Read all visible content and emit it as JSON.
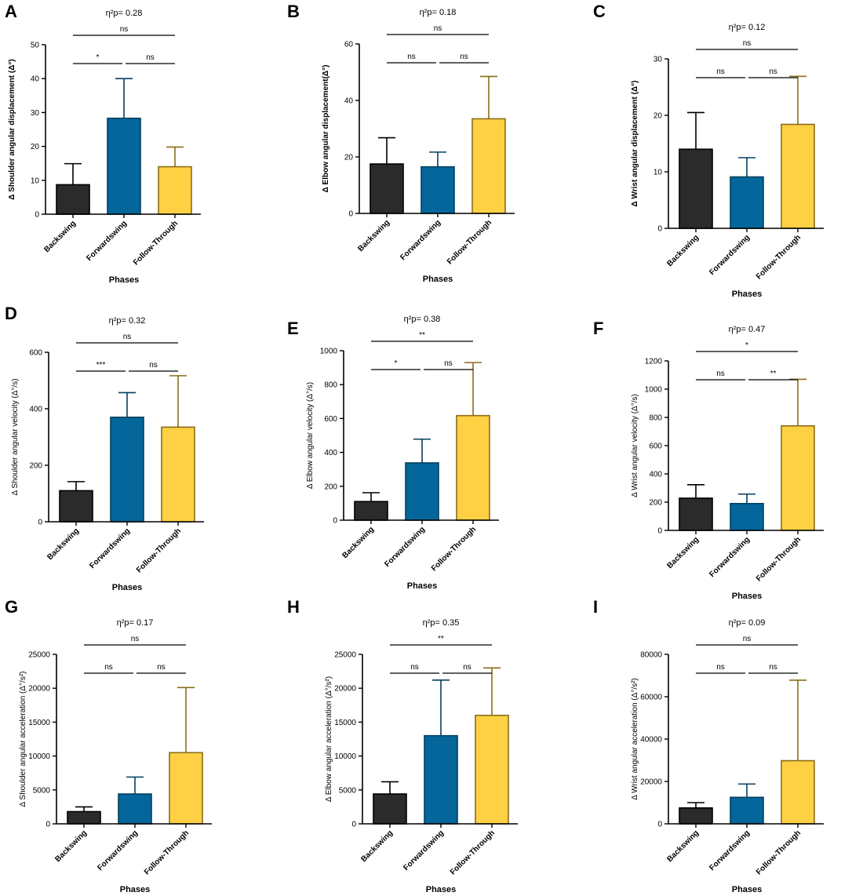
{
  "figure": {
    "categories": [
      "Backswing",
      "Forwardswing",
      "Follow-Through"
    ],
    "xlabel": "Phases",
    "colors": {
      "bars": [
        "#2b2b2b",
        "#04669a",
        "#fdd143"
      ],
      "edges": [
        "#000000",
        "#03405f",
        "#8a6d1a"
      ]
    }
  },
  "chart_data": [
    {
      "panel": "A",
      "type": "bar",
      "ylabel": "Δ Shoulder angular displacement (Δ°)",
      "ylabel_bold": true,
      "eta": "η²p= 0.28",
      "ylim": [
        0,
        50
      ],
      "yticks": [
        0,
        10,
        20,
        30,
        40,
        50
      ],
      "values": [
        8.7,
        28.3,
        14.0
      ],
      "errors": [
        6.2,
        11.7,
        5.8
      ],
      "brackets": [
        {
          "from": 0,
          "to": 2,
          "label": "ns"
        },
        {
          "from": 0,
          "to": 1,
          "label": "*"
        },
        {
          "from": 1,
          "to": 2,
          "label": "ns"
        }
      ]
    },
    {
      "panel": "B",
      "type": "bar",
      "ylabel": "Δ Elbow angular displacement(Δ°)",
      "ylabel_bold": true,
      "eta": "η²p= 0.18",
      "ylim": [
        0,
        60
      ],
      "yticks": [
        0,
        20,
        40,
        60
      ],
      "values": [
        17.5,
        16.5,
        33.5
      ],
      "errors": [
        9.3,
        5.2,
        15.0
      ],
      "brackets": [
        {
          "from": 0,
          "to": 2,
          "label": "ns"
        },
        {
          "from": 0,
          "to": 1,
          "label": "ns"
        },
        {
          "from": 1,
          "to": 2,
          "label": "ns"
        }
      ]
    },
    {
      "panel": "C",
      "type": "bar",
      "ylabel": "Δ Wrist angular displacement (Δ°)",
      "ylabel_bold": true,
      "eta": "η²p= 0.12",
      "ylim": [
        0,
        30
      ],
      "yticks": [
        0,
        10,
        20,
        30
      ],
      "values": [
        14.0,
        9.1,
        18.4
      ],
      "errors": [
        6.5,
        3.4,
        8.5
      ],
      "brackets": [
        {
          "from": 0,
          "to": 2,
          "label": "ns"
        },
        {
          "from": 0,
          "to": 1,
          "label": "ns"
        },
        {
          "from": 1,
          "to": 2,
          "label": "ns"
        }
      ]
    },
    {
      "panel": "D",
      "type": "bar",
      "ylabel": "Δ Shoulder angular velocity (Δ°/s)",
      "ylabel_bold": false,
      "eta": "η²p= 0.32",
      "ylim": [
        0,
        600
      ],
      "yticks": [
        0,
        200,
        400,
        600
      ],
      "values": [
        110,
        370,
        335
      ],
      "errors": [
        32,
        87,
        182
      ],
      "brackets": [
        {
          "from": 0,
          "to": 2,
          "label": "ns"
        },
        {
          "from": 0,
          "to": 1,
          "label": "***"
        },
        {
          "from": 1,
          "to": 2,
          "label": "ns"
        }
      ]
    },
    {
      "panel": "E",
      "type": "bar",
      "ylabel": "Δ Elbow angular velocity (Δ°/s)",
      "ylabel_bold": false,
      "eta": "η²p= 0.38",
      "ylim": [
        0,
        1000
      ],
      "yticks": [
        0,
        200,
        400,
        600,
        800,
        1000
      ],
      "values": [
        110,
        338,
        617
      ],
      "errors": [
        52,
        140,
        313
      ],
      "brackets": [
        {
          "from": 0,
          "to": 2,
          "label": "**"
        },
        {
          "from": 0,
          "to": 1,
          "label": "*"
        },
        {
          "from": 1,
          "to": 2,
          "label": "ns"
        }
      ]
    },
    {
      "panel": "F",
      "type": "bar",
      "ylabel": "Δ Wrist angular velocity (Δ°/s)",
      "ylabel_bold": false,
      "eta": "η²p= 0.47",
      "ylim": [
        0,
        1200
      ],
      "yticks": [
        0,
        200,
        400,
        600,
        800,
        1000,
        1200
      ],
      "values": [
        228,
        190,
        740
      ],
      "errors": [
        95,
        67,
        330
      ],
      "brackets": [
        {
          "from": 0,
          "to": 2,
          "label": "*"
        },
        {
          "from": 0,
          "to": 1,
          "label": "ns"
        },
        {
          "from": 1,
          "to": 2,
          "label": "**"
        }
      ]
    },
    {
      "panel": "G",
      "type": "bar",
      "ylabel": "Δ Shoulder angular acceleration (Δ°/s²)",
      "ylabel_bold": false,
      "eta": "η²p= 0.17",
      "ylim": [
        0,
        25000
      ],
      "yticks": [
        0,
        5000,
        10000,
        15000,
        20000,
        25000
      ],
      "values": [
        1800,
        4400,
        10500
      ],
      "errors": [
        700,
        2500,
        9600
      ],
      "brackets": [
        {
          "from": 0,
          "to": 2,
          "label": "ns"
        },
        {
          "from": 0,
          "to": 1,
          "label": "ns"
        },
        {
          "from": 1,
          "to": 2,
          "label": "ns"
        }
      ]
    },
    {
      "panel": "H",
      "type": "bar",
      "ylabel": "Δ Elbow angular acceleration (Δ°/s²)",
      "ylabel_bold": false,
      "eta": "η²p= 0.35",
      "ylim": [
        0,
        25000
      ],
      "yticks": [
        0,
        5000,
        10000,
        15000,
        20000,
        25000
      ],
      "values": [
        4400,
        13000,
        16000
      ],
      "errors": [
        1800,
        8200,
        7000
      ],
      "brackets": [
        {
          "from": 0,
          "to": 2,
          "label": "**"
        },
        {
          "from": 0,
          "to": 1,
          "label": "ns"
        },
        {
          "from": 1,
          "to": 2,
          "label": "ns"
        }
      ]
    },
    {
      "panel": "I",
      "type": "bar",
      "ylabel": "Δ Wrist angular acceleration (Δ°/s²)",
      "ylabel_bold": false,
      "eta": "η²p= 0.09",
      "ylim": [
        0,
        80000
      ],
      "yticks": [
        0,
        20000,
        40000,
        60000,
        80000
      ],
      "values": [
        7500,
        12500,
        29800
      ],
      "errors": [
        2500,
        6300,
        38000
      ],
      "brackets": [
        {
          "from": 0,
          "to": 2,
          "label": "ns"
        },
        {
          "from": 0,
          "to": 1,
          "label": "ns"
        },
        {
          "from": 1,
          "to": 2,
          "label": "ns"
        }
      ]
    }
  ]
}
